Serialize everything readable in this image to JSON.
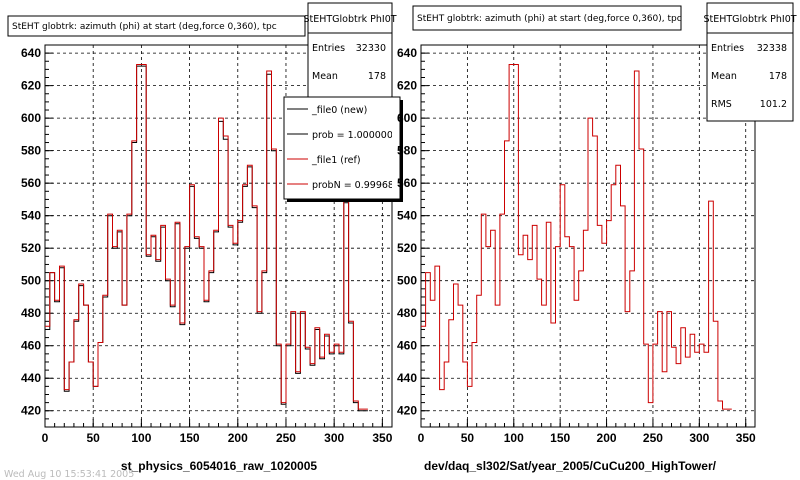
{
  "canvas": {
    "background": "#ffffff"
  },
  "footer_text": "Wed Aug 10 15:53:41 2005",
  "chart_data": [
    {
      "type": "histogram-step",
      "title": "StEHT globtrk: azimuth (phi) at start (deg,force 0,360), tpc",
      "xlabel": "st_physics_6054016_raw_1020005",
      "xlim": [
        0,
        360
      ],
      "ylim": [
        410,
        645
      ],
      "xticks": [
        0,
        50,
        100,
        150,
        200,
        250,
        300,
        350
      ],
      "yticks": [
        420,
        440,
        460,
        480,
        500,
        520,
        540,
        560,
        580,
        600,
        620,
        640
      ],
      "grid": true,
      "bin_width": 5,
      "stats": {
        "title": "StEHTGlobtrk PhI0T",
        "rows": [
          {
            "label": "Entries",
            "value": "32330"
          },
          {
            "label": "Mean",
            "value": "178"
          }
        ]
      },
      "legend": {
        "placement": "top-right",
        "entries": [
          {
            "label": "_file0 (new)",
            "color": "#000000"
          },
          {
            "label": "prob = 1.000000",
            "color": "#000000"
          },
          {
            "label": "_file1 (ref)",
            "color": "#cc0000"
          },
          {
            "label": "probN = 0.999681",
            "color": "#cc0000"
          }
        ]
      },
      "series": [
        {
          "name": "_file0 (new)",
          "color": "#000000",
          "values": [
            470,
            505,
            487,
            508,
            432,
            450,
            475,
            497,
            485,
            450,
            435,
            462,
            490,
            540,
            520,
            530,
            485,
            540,
            585,
            632,
            632,
            515,
            527,
            512,
            533,
            500,
            484,
            535,
            473,
            520,
            558,
            526,
            520,
            487,
            505,
            530,
            598,
            587,
            533,
            522,
            536,
            558,
            570,
            545,
            480,
            505,
            627,
            580,
            460,
            424,
            460,
            480,
            443,
            480,
            458,
            448,
            470,
            452,
            466,
            455,
            460,
            455,
            548,
            474,
            425,
            420,
            420
          ]
        },
        {
          "name": "_file1 (ref)",
          "color": "#cc0000",
          "values": [
            472,
            505,
            488,
            509,
            433,
            450,
            476,
            498,
            485,
            450,
            435,
            462,
            491,
            541,
            521,
            531,
            485,
            541,
            586,
            633,
            633,
            516,
            528,
            513,
            534,
            501,
            485,
            536,
            474,
            521,
            559,
            527,
            521,
            488,
            506,
            531,
            600,
            589,
            534,
            523,
            537,
            559,
            571,
            546,
            481,
            506,
            629,
            581,
            461,
            425,
            461,
            481,
            444,
            481,
            459,
            449,
            471,
            453,
            467,
            456,
            461,
            456,
            549,
            475,
            426,
            421,
            421
          ]
        }
      ]
    },
    {
      "type": "histogram-step",
      "title": "StEHT globtrk: azimuth (phi) at start (deg,force 0,360), tpc",
      "xlabel": "dev/daq_sl302/Sat/year_2005/CuCu200_HighTower/",
      "xlim": [
        0,
        360
      ],
      "ylim": [
        410,
        645
      ],
      "xticks": [
        0,
        50,
        100,
        150,
        200,
        250,
        300,
        350
      ],
      "yticks": [
        420,
        440,
        460,
        480,
        500,
        520,
        540,
        560,
        580,
        600,
        620,
        640
      ],
      "grid": true,
      "bin_width": 5,
      "stats": {
        "title": "StEHTGlobtrk PhI0T",
        "rows": [
          {
            "label": "Entries",
            "value": "32338"
          },
          {
            "label": "Mean",
            "value": "178"
          },
          {
            "label": "RMS",
            "value": "101.2"
          }
        ]
      },
      "series": [
        {
          "name": "ref",
          "color": "#cc0000",
          "values": [
            472,
            505,
            488,
            509,
            433,
            450,
            476,
            498,
            485,
            450,
            435,
            462,
            491,
            541,
            521,
            531,
            485,
            541,
            586,
            633,
            633,
            516,
            528,
            513,
            534,
            501,
            485,
            536,
            474,
            521,
            559,
            527,
            521,
            488,
            506,
            531,
            600,
            589,
            534,
            523,
            537,
            559,
            571,
            546,
            481,
            506,
            629,
            581,
            461,
            425,
            461,
            481,
            444,
            481,
            459,
            449,
            471,
            453,
            467,
            456,
            461,
            456,
            549,
            475,
            426,
            421,
            421
          ]
        }
      ]
    }
  ]
}
